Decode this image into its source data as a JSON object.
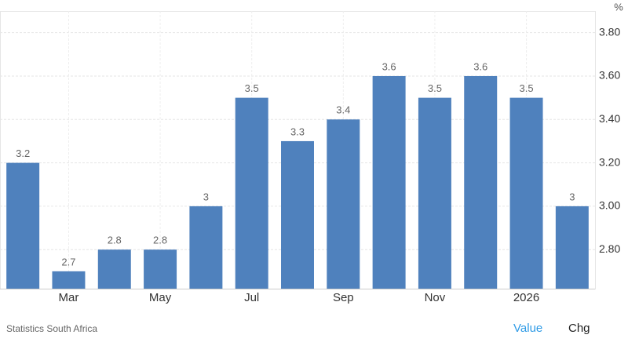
{
  "chart_data": {
    "type": "bar",
    "unit": "%",
    "categories": [
      null,
      "Mar",
      null,
      "May",
      null,
      "Jul",
      null,
      "Sep",
      null,
      "Nov",
      null,
      "2026",
      null
    ],
    "values": [
      3.2,
      2.7,
      2.8,
      2.8,
      3,
      3.5,
      3.3,
      3.4,
      3.6,
      3.5,
      3.6,
      3.5,
      3
    ],
    "color": "#4f81bd",
    "ylim": [
      2.62,
      3.9
    ],
    "yticks": [
      {
        "value": 2.8,
        "label": "2.80"
      },
      {
        "value": 3.0,
        "label": "3.00"
      },
      {
        "value": 3.2,
        "label": "3.20"
      },
      {
        "value": 3.4,
        "label": "3.40"
      },
      {
        "value": 3.6,
        "label": "3.60"
      },
      {
        "value": 3.8,
        "label": "3.80"
      }
    ],
    "grid": true,
    "source": "Statistics South Africa",
    "tabs": [
      "Value",
      "Chg"
    ]
  }
}
